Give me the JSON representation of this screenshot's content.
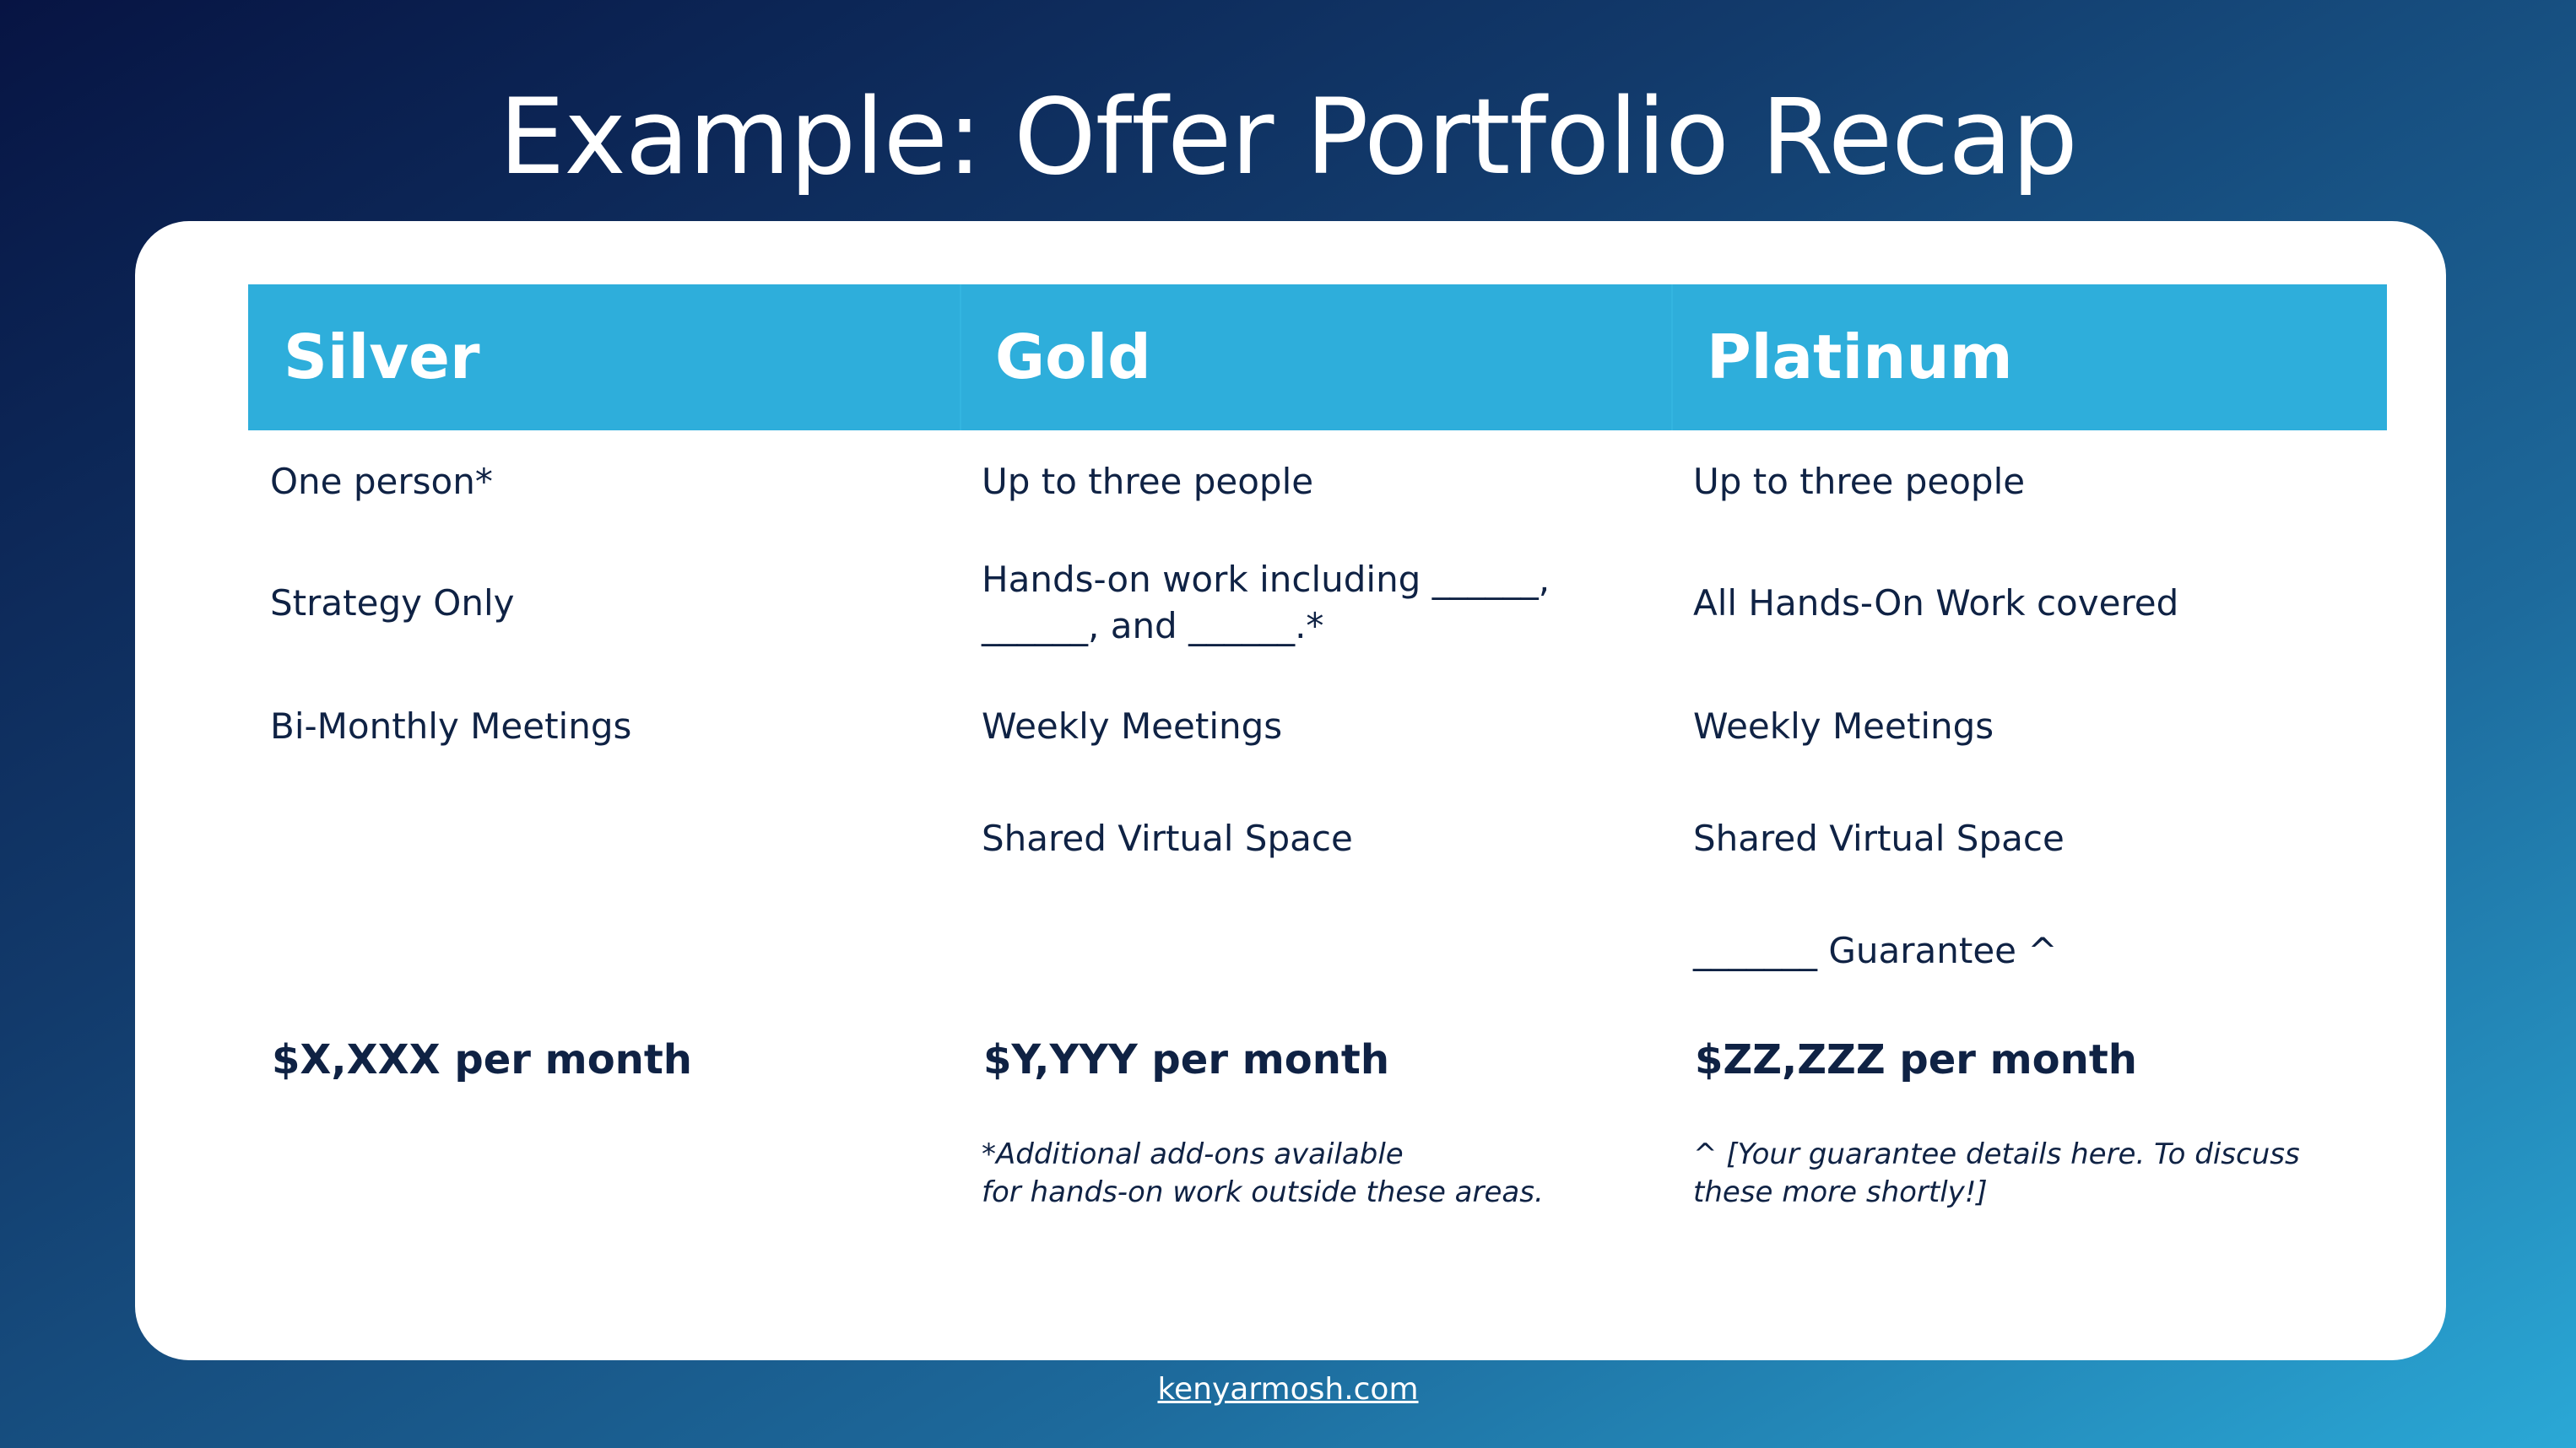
{
  "title": "Example: Offer Portfolio Recap",
  "table": {
    "columns": [
      {
        "header": "Silver",
        "rows": [
          "One person*",
          "Strategy Only",
          "Bi-Monthly Meetings",
          "",
          ""
        ],
        "price": "$X,XXX per month",
        "note": [
          "",
          ""
        ]
      },
      {
        "header": "Gold",
        "rows": [
          "Up to three people",
          "Hands-on work including ______,",
          "Weekly Meetings",
          "Shared Virtual Space",
          ""
        ],
        "row2_line2": "______, and ______.*",
        "price": "$Y,YYY per month",
        "note": [
          "*Additional add-ons available",
          "for hands-on work outside these areas."
        ]
      },
      {
        "header": "Platinum",
        "rows": [
          "Up to three people",
          "All Hands-On Work covered",
          "Weekly Meetings",
          "Shared Virtual Space",
          "_______ Guarantee ^"
        ],
        "price": "$ZZ,ZZZ per month",
        "note": [
          "^ [Your guarantee details here. To discuss",
          "these more shortly!]"
        ]
      }
    ]
  },
  "footer": {
    "link": "kenyarmosh.com"
  }
}
